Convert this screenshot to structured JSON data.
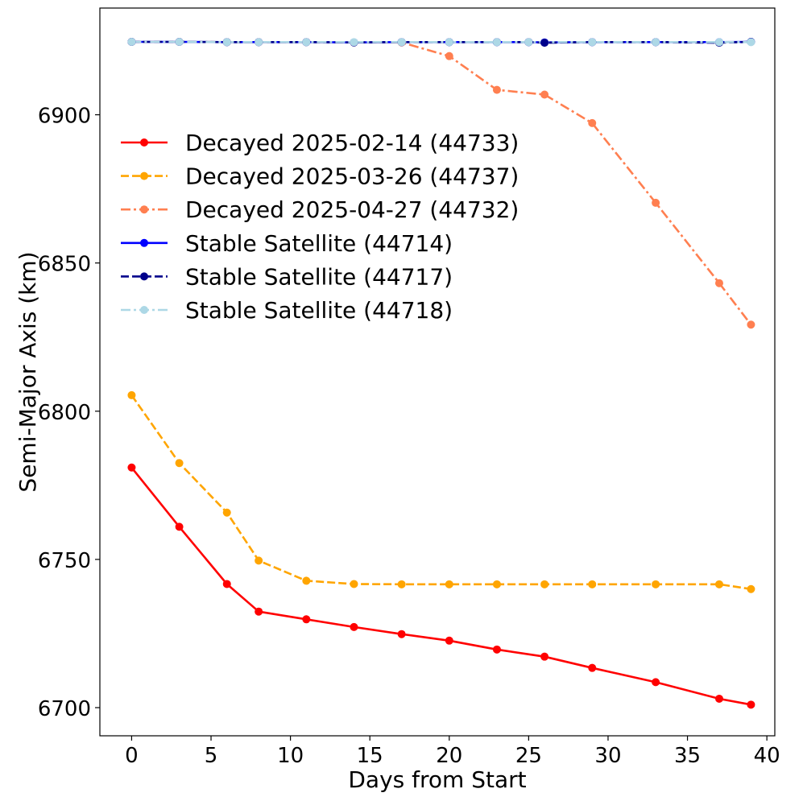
{
  "chart_data": {
    "type": "line",
    "title": "",
    "xlabel": "Days from Start",
    "ylabel": "Semi-Major Axis (km)",
    "xlim": [
      -2,
      40.5
    ],
    "ylim": [
      6690.5,
      6936
    ],
    "xticks": [
      "0",
      "5",
      "10",
      "15",
      "20",
      "25",
      "30",
      "35",
      "40"
    ],
    "yticks": [
      "6700",
      "6750",
      "6800",
      "6850",
      "6900"
    ],
    "grid": false,
    "legend_position": "upper-left",
    "series": [
      {
        "name": "Decayed 2025-02-14 (44733)",
        "color": "#ff0000",
        "dash": "solid",
        "x": [
          0,
          3,
          6,
          8,
          11,
          14,
          17,
          20,
          23,
          26,
          29,
          33,
          37,
          39
        ],
        "y": [
          6781,
          6761,
          6741.7,
          6732.4,
          6729.8,
          6727.2,
          6724.8,
          6722.6,
          6719.6,
          6717.2,
          6713.4,
          6708.6,
          6703,
          6701
        ]
      },
      {
        "name": "Decayed 2025-03-26 (44737)",
        "color": "#ffa500",
        "dash": "dashed",
        "x": [
          0,
          3,
          6,
          8,
          11,
          14,
          17,
          20,
          23,
          26,
          29,
          33,
          37,
          39
        ],
        "y": [
          6805.4,
          6782.5,
          6765.8,
          6749.6,
          6742.8,
          6741.7,
          6741.6,
          6741.6,
          6741.6,
          6741.6,
          6741.6,
          6741.6,
          6741.6,
          6740
        ]
      },
      {
        "name": "Decayed 2025-04-27 (44732)",
        "color": "#ff7f50",
        "dash": "dashdot",
        "x": [
          0,
          3,
          6,
          8,
          11,
          14,
          17,
          20,
          23,
          26,
          29,
          33,
          37,
          39
        ],
        "y": [
          6924.6,
          6924.6,
          6924.5,
          6924.5,
          6924.5,
          6924.4,
          6924.4,
          6919.8,
          6908.4,
          6906.8,
          6897.2,
          6870.3,
          6843.2,
          6829.2
        ]
      },
      {
        "name": "Stable Satellite (44714)",
        "color": "#0000ff",
        "dash": "solid",
        "x": [
          0,
          3,
          6,
          8,
          11,
          14,
          17,
          20,
          23,
          25,
          26,
          29,
          33,
          37,
          39
        ],
        "y": [
          6924.6,
          6924.6,
          6924.5,
          6924.5,
          6924.5,
          6924.4,
          6924.5,
          6924.5,
          6924.5,
          6924.5,
          6924.4,
          6924.5,
          6924.5,
          6924.5,
          6924.6
        ]
      },
      {
        "name": "Stable Satellite (44717)",
        "color": "#00008b",
        "dash": "dashed",
        "x": [
          0,
          3,
          6,
          8,
          11,
          14,
          17,
          20,
          23,
          25,
          26,
          29,
          33,
          37,
          39
        ],
        "y": [
          6924.6,
          6924.6,
          6924.5,
          6924.5,
          6924.5,
          6924.4,
          6924.5,
          6924.5,
          6924.5,
          6924.5,
          6924.3,
          6924.5,
          6924.5,
          6924.3,
          6924.6
        ]
      },
      {
        "name": "Stable Satellite (44718)",
        "color": "#add8e6",
        "dash": "dashdot",
        "x": [
          0,
          3,
          6,
          8,
          11,
          14,
          17,
          20,
          23,
          25,
          29,
          33,
          37,
          39
        ],
        "y": [
          6924.6,
          6924.6,
          6924.5,
          6924.5,
          6924.5,
          6924.5,
          6924.5,
          6924.5,
          6924.5,
          6924.5,
          6924.5,
          6924.5,
          6924.5,
          6924.5
        ]
      }
    ]
  }
}
